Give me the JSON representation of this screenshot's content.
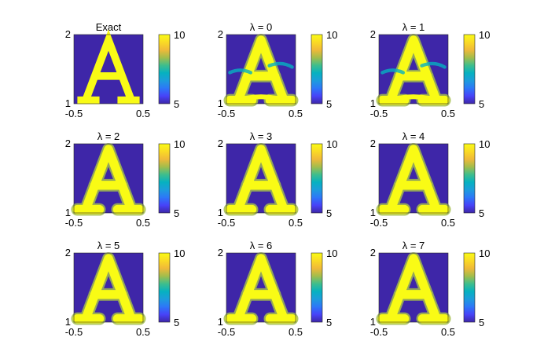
{
  "chart_data": [
    {
      "type": "heatmap",
      "title": "Exact",
      "variant": "exact",
      "xlim": [
        -0.5,
        0.5
      ],
      "ylim": [
        1,
        2
      ],
      "x_ticks": [
        "-0.5",
        "0.5"
      ],
      "y_ticks": [
        "1",
        "2"
      ],
      "color_range": [
        5,
        10
      ],
      "colorbar_ticks": [
        "5",
        "10"
      ]
    },
    {
      "type": "heatmap",
      "title": "λ = 0",
      "variant": "recon",
      "lambda": 0,
      "xlim": [
        -0.5,
        0.5
      ],
      "ylim": [
        1,
        2
      ],
      "x_ticks": [
        "-0.5",
        "0.5"
      ],
      "y_ticks": [
        "1",
        "2"
      ],
      "color_range": [
        5,
        10
      ],
      "colorbar_ticks": [
        "5",
        "10"
      ]
    },
    {
      "type": "heatmap",
      "title": "λ = 1",
      "variant": "recon",
      "lambda": 1,
      "xlim": [
        -0.5,
        0.5
      ],
      "ylim": [
        1,
        2
      ],
      "x_ticks": [
        "-0.5",
        "0.5"
      ],
      "y_ticks": [
        "1",
        "2"
      ],
      "color_range": [
        5,
        10
      ],
      "colorbar_ticks": [
        "5",
        "10"
      ]
    },
    {
      "type": "heatmap",
      "title": "λ = 2",
      "variant": "recon",
      "lambda": 2,
      "xlim": [
        -0.5,
        0.5
      ],
      "ylim": [
        1,
        2
      ],
      "x_ticks": [
        "-0.5",
        "0.5"
      ],
      "y_ticks": [
        "1",
        "2"
      ],
      "color_range": [
        5,
        10
      ],
      "colorbar_ticks": [
        "5",
        "10"
      ]
    },
    {
      "type": "heatmap",
      "title": "λ = 3",
      "variant": "recon",
      "lambda": 3,
      "xlim": [
        -0.5,
        0.5
      ],
      "ylim": [
        1,
        2
      ],
      "x_ticks": [
        "-0.5",
        "0.5"
      ],
      "y_ticks": [
        "1",
        "2"
      ],
      "color_range": [
        5,
        10
      ],
      "colorbar_ticks": [
        "5",
        "10"
      ]
    },
    {
      "type": "heatmap",
      "title": "λ = 4",
      "variant": "recon",
      "lambda": 4,
      "xlim": [
        -0.5,
        0.5
      ],
      "ylim": [
        1,
        2
      ],
      "x_ticks": [
        "-0.5",
        "0.5"
      ],
      "y_ticks": [
        "1",
        "2"
      ],
      "color_range": [
        5,
        10
      ],
      "colorbar_ticks": [
        "5",
        "10"
      ]
    },
    {
      "type": "heatmap",
      "title": "λ = 5",
      "variant": "recon",
      "lambda": 5,
      "xlim": [
        -0.5,
        0.5
      ],
      "ylim": [
        1,
        2
      ],
      "x_ticks": [
        "-0.5",
        "0.5"
      ],
      "y_ticks": [
        "1",
        "2"
      ],
      "color_range": [
        5,
        10
      ],
      "colorbar_ticks": [
        "5",
        "10"
      ]
    },
    {
      "type": "heatmap",
      "title": "λ = 6",
      "variant": "recon",
      "lambda": 6,
      "xlim": [
        -0.5,
        0.5
      ],
      "ylim": [
        1,
        2
      ],
      "x_ticks": [
        "-0.5",
        "0.5"
      ],
      "y_ticks": [
        "1",
        "2"
      ],
      "color_range": [
        5,
        10
      ],
      "colorbar_ticks": [
        "5",
        "10"
      ]
    },
    {
      "type": "heatmap",
      "title": "λ = 7",
      "variant": "recon",
      "lambda": 7,
      "xlim": [
        -0.5,
        0.5
      ],
      "ylim": [
        1,
        2
      ],
      "x_ticks": [
        "-0.5",
        "0.5"
      ],
      "y_ticks": [
        "1",
        "2"
      ],
      "color_range": [
        5,
        10
      ],
      "colorbar_ticks": [
        "5",
        "10"
      ]
    }
  ],
  "colors": {
    "colormap": [
      "#3e26a8",
      "#4743f8",
      "#2d76f8",
      "#1d9cdd",
      "#06b1c0",
      "#3fbe8c",
      "#a3bd4b",
      "#f0b939",
      "#fada25",
      "#f9fb15"
    ]
  }
}
